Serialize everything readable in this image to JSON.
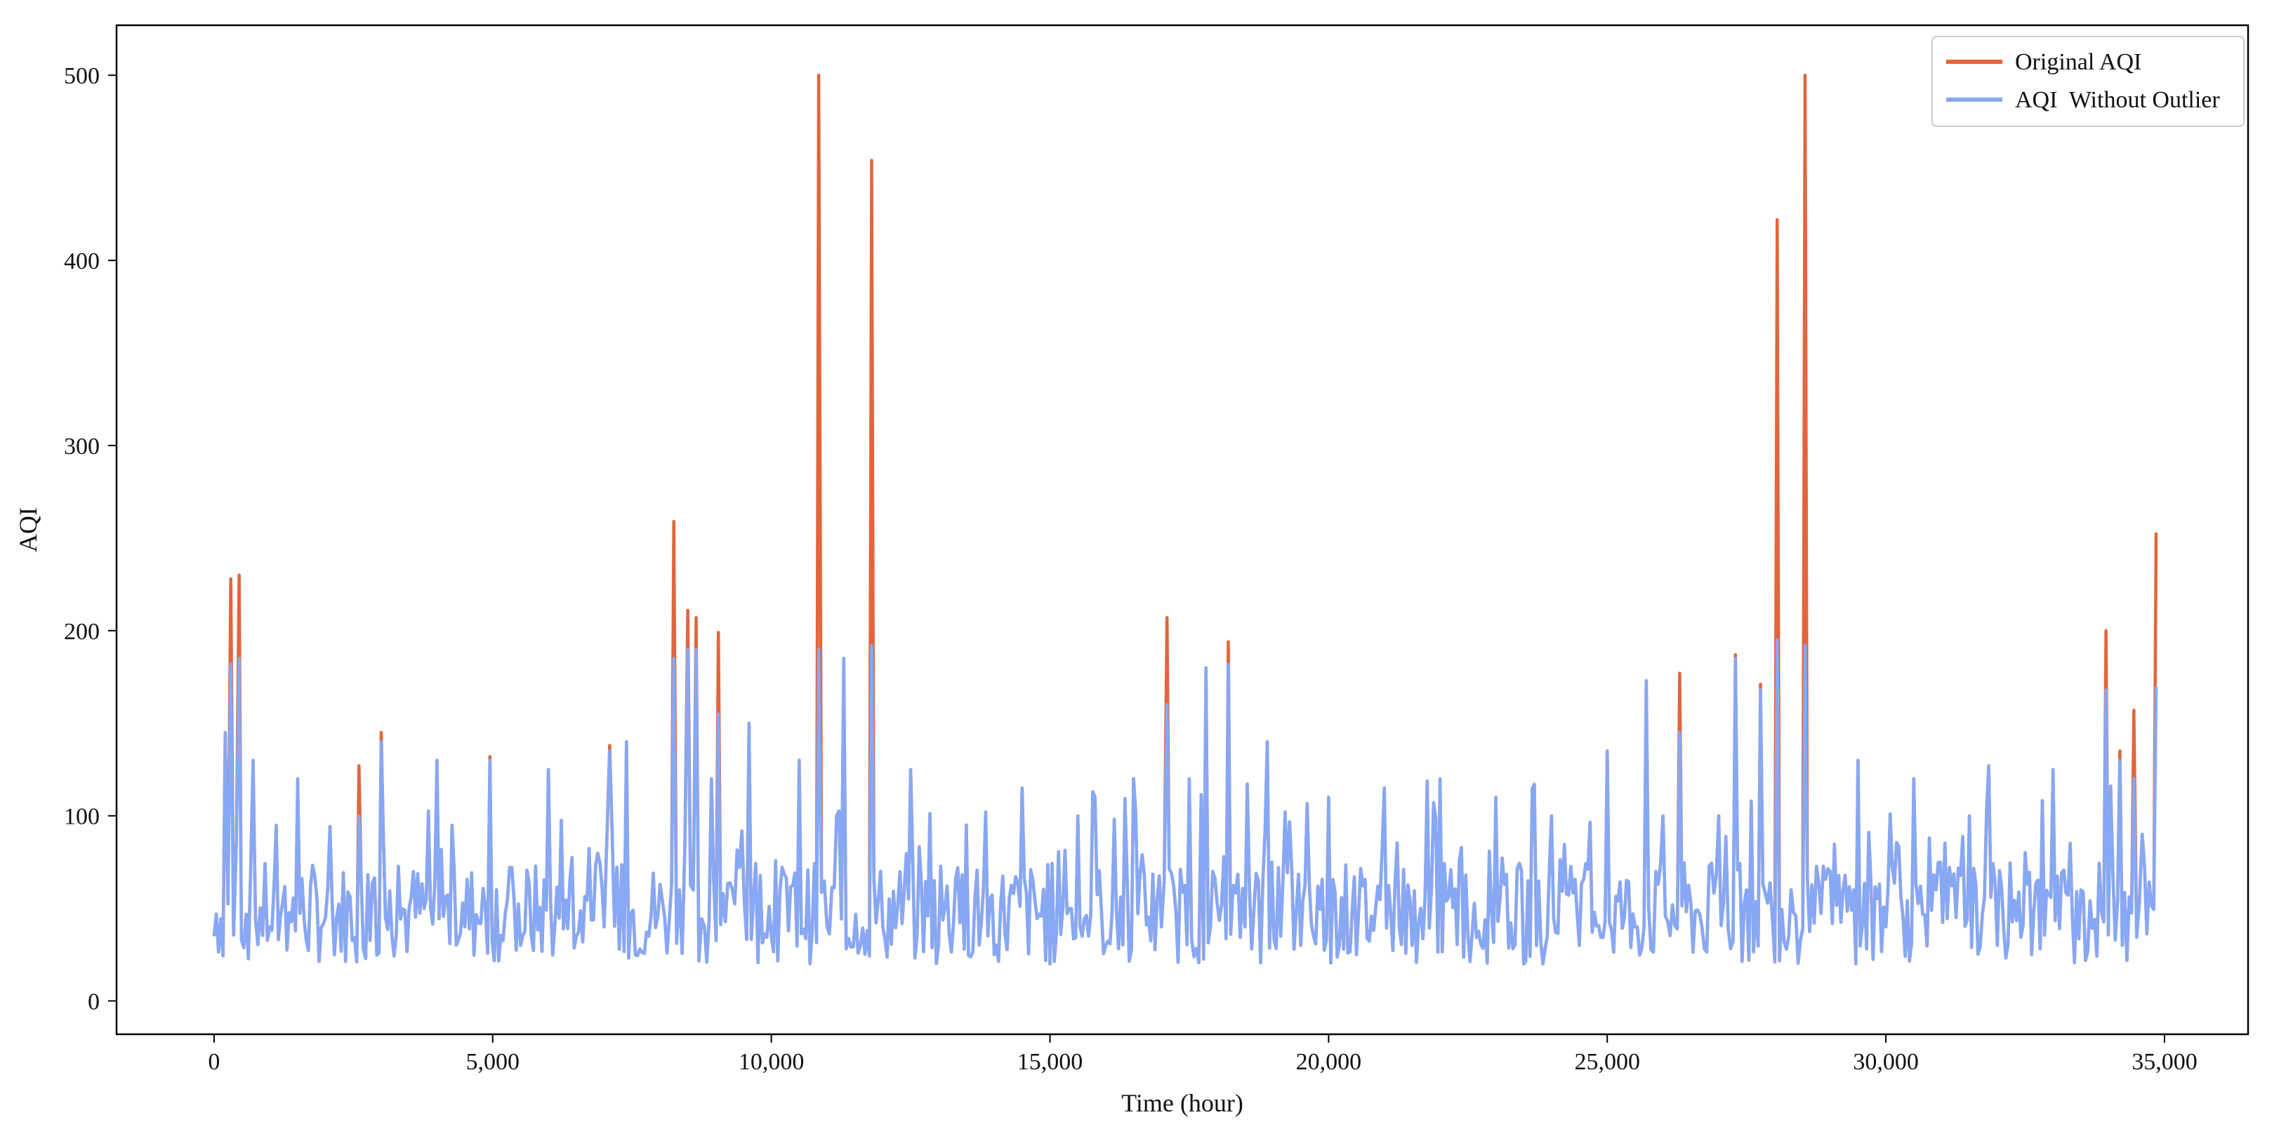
{
  "chart_data": {
    "type": "line",
    "xlabel": "Time (hour)",
    "ylabel": "AQI",
    "xlim": [
      -1750,
      36500
    ],
    "ylim": [
      -18,
      527
    ],
    "xticks": [
      0,
      5000,
      10000,
      15000,
      20000,
      25000,
      30000,
      35000
    ],
    "xtick_labels": [
      "0",
      "5,000",
      "10,000",
      "15,000",
      "20,000",
      "25,000",
      "30,000",
      "35,000"
    ],
    "yticks": [
      0,
      100,
      200,
      300,
      400,
      500
    ],
    "ytick_labels": [
      "0",
      "100",
      "200",
      "300",
      "400",
      "500"
    ],
    "grid": false,
    "legend_position": "top-right",
    "series": [
      {
        "name": "Original AQI",
        "color": "#e3653c",
        "x": [
          0,
          200,
          300,
          450,
          700,
          1000,
          1500,
          2000,
          2600,
          3000,
          3500,
          4000,
          4500,
          4950,
          5500,
          6000,
          6500,
          7000,
          7100,
          7400,
          7800,
          8250,
          8350,
          8500,
          8650,
          8800,
          9050,
          9300,
          9600,
          10000,
          10500,
          10850,
          11000,
          11300,
          11600,
          11800,
          12000,
          12500,
          13000,
          13500,
          14000,
          14500,
          15000,
          15500,
          16000,
          16500,
          17000,
          17100,
          17500,
          17800,
          18200,
          18500,
          18900,
          19500,
          20000,
          20500,
          21000,
          21500,
          22000,
          22500,
          23000,
          23500,
          24000,
          24500,
          25000,
          25500,
          25700,
          26000,
          26300,
          26700,
          27000,
          27300,
          27500,
          27750,
          28050,
          28300,
          28550,
          29000,
          29500,
          30000,
          30500,
          30900,
          31500,
          32000,
          32500,
          33000,
          33500,
          33950,
          34200,
          34450,
          34600,
          34850
        ],
        "values": [
          35,
          145,
          228,
          230,
          130,
          40,
          120,
          45,
          127,
          145,
          50,
          130,
          40,
          132,
          30,
          125,
          35,
          40,
          138,
          140,
          35,
          259,
          60,
          211,
          207,
          40,
          199,
          60,
          150,
          35,
          130,
          500,
          40,
          185,
          30,
          454,
          40,
          125,
          30,
          95,
          25,
          115,
          20,
          100,
          30,
          120,
          40,
          207,
          120,
          180,
          194,
          40,
          140,
          30,
          110,
          25,
          115,
          30,
          120,
          35,
          110,
          20,
          100,
          30,
          135,
          40,
          173,
          100,
          177,
          40,
          100,
          187,
          60,
          171,
          422,
          60,
          500,
          70,
          130,
          40,
          120,
          60,
          100,
          30,
          80,
          125,
          60,
          200,
          135,
          157,
          90,
          253
        ]
      },
      {
        "name": "AQI  Without Outlier",
        "color": "#86a8f5",
        "x": [
          0,
          200,
          300,
          450,
          700,
          1000,
          1500,
          2000,
          2600,
          3000,
          3500,
          4000,
          4500,
          4950,
          5500,
          6000,
          6500,
          7000,
          7100,
          7400,
          7800,
          8250,
          8350,
          8500,
          8650,
          8800,
          9050,
          9300,
          9600,
          10000,
          10500,
          10850,
          11000,
          11300,
          11600,
          11800,
          12000,
          12500,
          13000,
          13500,
          14000,
          14500,
          15000,
          15500,
          16000,
          16500,
          17000,
          17100,
          17500,
          17800,
          18200,
          18500,
          18900,
          19500,
          20000,
          20500,
          21000,
          21500,
          22000,
          22500,
          23000,
          23500,
          24000,
          24500,
          25000,
          25500,
          25700,
          26000,
          26300,
          26700,
          27000,
          27300,
          27500,
          27750,
          28050,
          28300,
          28550,
          29000,
          29500,
          30000,
          30500,
          30900,
          31500,
          32000,
          32500,
          33000,
          33500,
          33950,
          34200,
          34450,
          34600,
          34850
        ],
        "values": [
          35,
          145,
          182,
          185,
          130,
          40,
          120,
          45,
          100,
          140,
          50,
          130,
          40,
          130,
          30,
          125,
          35,
          40,
          135,
          140,
          35,
          185,
          60,
          190,
          190,
          40,
          155,
          60,
          150,
          35,
          130,
          190,
          40,
          185,
          30,
          192,
          40,
          125,
          30,
          95,
          25,
          115,
          20,
          100,
          30,
          120,
          40,
          160,
          120,
          180,
          182,
          40,
          140,
          30,
          110,
          25,
          115,
          30,
          120,
          35,
          110,
          20,
          100,
          30,
          135,
          40,
          173,
          100,
          145,
          40,
          100,
          185,
          60,
          168,
          195,
          60,
          192,
          70,
          130,
          40,
          120,
          60,
          100,
          30,
          80,
          125,
          60,
          168,
          130,
          120,
          90,
          170
        ]
      }
    ]
  }
}
